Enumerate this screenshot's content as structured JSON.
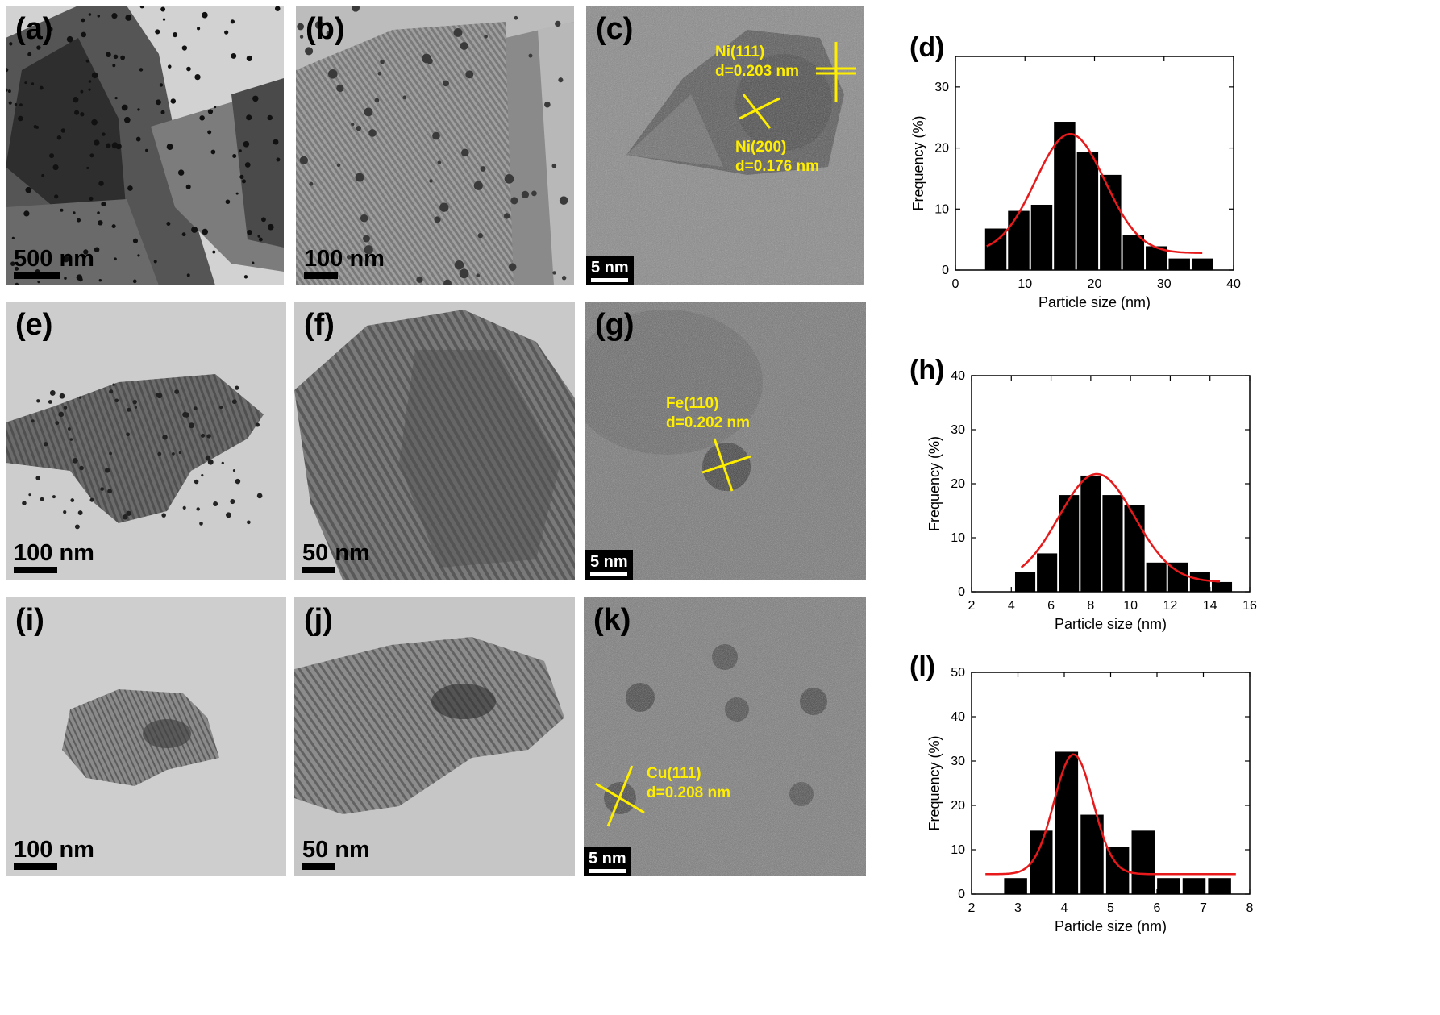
{
  "panels": {
    "a": {
      "label": "(a)",
      "scale": "500 nm"
    },
    "b": {
      "label": "(b)",
      "scale": "100 nm"
    },
    "c": {
      "label": "(c)",
      "scale": "5 nm",
      "ann1": [
        "Ni(111)",
        "d=0.203 nm"
      ],
      "ann2": [
        "Ni(200)",
        "d=0.176 nm"
      ]
    },
    "d": {
      "label": "(d)"
    },
    "e": {
      "label": "(e)",
      "scale": "100 nm"
    },
    "f": {
      "label": "(f)",
      "scale": "50 nm"
    },
    "g": {
      "label": "(g)",
      "scale": "5 nm",
      "ann1": [
        "Fe(110)",
        "d=0.202 nm"
      ]
    },
    "h": {
      "label": "(h)"
    },
    "i": {
      "label": "(i)",
      "scale": "100 nm"
    },
    "j": {
      "label": "(j)",
      "scale": "50 nm"
    },
    "k": {
      "label": "(k)",
      "scale": "5 nm",
      "ann1": [
        "Cu(111)",
        "d=0.208 nm"
      ]
    },
    "l": {
      "label": "(l)"
    }
  },
  "colors": {
    "bar": "#000000",
    "fit": "#e8191a",
    "annotation": "#ffee00"
  },
  "chart_data": [
    {
      "id": "d",
      "type": "bar",
      "xlabel": "Particle size (nm)",
      "ylabel": "Frequency (%)",
      "xlim": [
        0,
        40
      ],
      "ylim": [
        0,
        35
      ],
      "xticks": [
        0,
        10,
        20,
        30,
        40
      ],
      "yticks": [
        0,
        10,
        20,
        30
      ],
      "binWidth": 3.3,
      "x": [
        5.8,
        9.1,
        12.4,
        15.7,
        19.0,
        22.3,
        25.6,
        28.9,
        32.2,
        35.5
      ],
      "values": [
        6.8,
        9.7,
        10.7,
        24.3,
        19.4,
        15.6,
        5.8,
        3.9,
        1.9,
        1.9
      ],
      "fit": {
        "amplitude": 19.5,
        "center": 16.5,
        "sigma": 5.0,
        "baseline": 2.8,
        "range": [
          4.5,
          35.5
        ]
      }
    },
    {
      "id": "h",
      "type": "bar",
      "xlabel": "Particle size (nm)",
      "ylabel": "Frequency (%)",
      "xlim": [
        2,
        16
      ],
      "ylim": [
        0,
        40
      ],
      "xticks": [
        2,
        4,
        6,
        8,
        10,
        12,
        14,
        16
      ],
      "yticks": [
        0,
        10,
        20,
        30,
        40
      ],
      "binWidth": 1.1,
      "x": [
        4.7,
        5.8,
        6.9,
        8.0,
        9.1,
        10.2,
        11.3,
        12.4,
        13.5,
        14.6
      ],
      "values": [
        3.6,
        7.1,
        17.9,
        21.5,
        17.9,
        16.1,
        5.4,
        5.4,
        3.6,
        1.8
      ],
      "fit": {
        "amplitude": 20.0,
        "center": 8.3,
        "sigma": 1.9,
        "baseline": 1.8,
        "range": [
          4.5,
          14.5
        ]
      }
    },
    {
      "id": "l",
      "type": "bar",
      "xlabel": "Particle size (nm)",
      "ylabel": "Frequency (%)",
      "xlim": [
        2,
        8
      ],
      "ylim": [
        0,
        50
      ],
      "xticks": [
        2,
        3,
        4,
        5,
        6,
        7,
        8
      ],
      "yticks": [
        0,
        10,
        20,
        30,
        40,
        50
      ],
      "binWidth": 0.53,
      "x": [
        2.95,
        3.5,
        4.05,
        4.6,
        5.15,
        5.7,
        6.25,
        6.8,
        7.35
      ],
      "values": [
        3.6,
        14.3,
        32.1,
        17.9,
        10.7,
        14.3,
        3.6,
        3.6,
        3.6
      ],
      "fit": {
        "amplitude": 27.0,
        "center": 4.2,
        "sigma": 0.42,
        "baseline": 4.5,
        "range": [
          2.3,
          7.7
        ]
      }
    }
  ]
}
